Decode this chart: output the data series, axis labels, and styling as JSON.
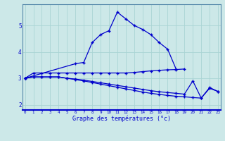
{
  "xlabel": "Graphe des températures (°c)",
  "bg_color": "#cce8e8",
  "grid_color": "#aad4d4",
  "line_color": "#0000cc",
  "x": [
    0,
    1,
    2,
    3,
    4,
    5,
    6,
    7,
    8,
    9,
    10,
    11,
    12,
    13,
    14,
    15,
    16,
    17,
    18,
    19,
    20,
    21,
    22,
    23
  ],
  "line1": [
    3.0,
    null,
    null,
    null,
    null,
    null,
    3.55,
    3.6,
    4.35,
    4.65,
    4.8,
    5.5,
    5.25,
    5.0,
    4.85,
    4.65,
    4.35,
    4.1,
    3.35,
    null,
    null,
    null,
    null,
    null
  ],
  "line2": [
    3.0,
    3.2,
    3.2,
    3.2,
    3.2,
    3.2,
    3.2,
    3.2,
    3.2,
    3.2,
    3.2,
    3.2,
    3.2,
    3.22,
    3.25,
    3.28,
    3.3,
    3.32,
    3.33,
    3.35,
    null,
    null,
    null,
    null
  ],
  "line3": [
    3.0,
    3.05,
    3.05,
    3.05,
    3.05,
    3.0,
    2.97,
    2.93,
    2.88,
    2.83,
    2.78,
    2.73,
    2.68,
    2.63,
    2.58,
    2.53,
    2.49,
    2.46,
    2.43,
    2.4,
    2.9,
    2.25,
    2.65,
    2.5
  ],
  "line4": [
    3.0,
    3.05,
    3.05,
    3.05,
    3.05,
    3.0,
    2.95,
    2.9,
    2.84,
    2.78,
    2.72,
    2.66,
    2.6,
    2.54,
    2.48,
    2.43,
    2.39,
    2.35,
    2.32,
    2.3,
    2.27,
    2.25,
    2.62,
    2.5
  ],
  "ylim": [
    1.8,
    5.8
  ],
  "xlim": [
    -0.3,
    23.3
  ],
  "yticks": [
    2,
    3,
    4,
    5
  ],
  "xticks": [
    0,
    1,
    2,
    3,
    4,
    5,
    6,
    7,
    8,
    9,
    10,
    11,
    12,
    13,
    14,
    15,
    16,
    17,
    18,
    19,
    20,
    21,
    22,
    23
  ]
}
